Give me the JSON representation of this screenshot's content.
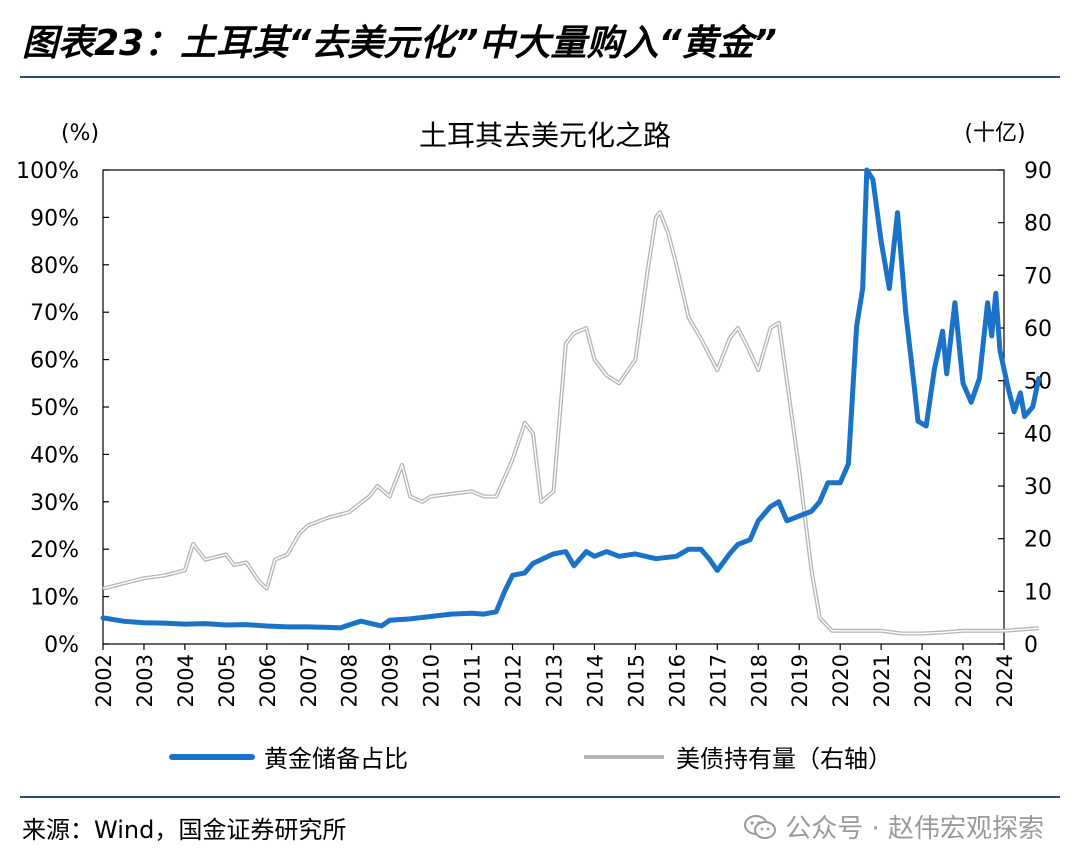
{
  "header": {
    "title": "图表23：土耳其“去美元化”中大量购入“黄金”"
  },
  "footer": {
    "source": "来源：Wind，国金证券研究所",
    "watermark": "公众号 · 赵伟宏观探索"
  },
  "colors": {
    "accent": "#1f4e79",
    "gold_series": "#1a73c8",
    "treasury_series": "#b4b4b4"
  },
  "chart_data": {
    "type": "line",
    "title": "土耳其去美元化之路",
    "y_left_unit": "(%)",
    "y_right_unit": "(十亿)",
    "ylim_left": [
      0,
      100
    ],
    "ylim_right": [
      0,
      90
    ],
    "y_left_ticks": [
      "0%",
      "10%",
      "20%",
      "30%",
      "40%",
      "50%",
      "60%",
      "70%",
      "80%",
      "90%",
      "100%"
    ],
    "y_right_ticks": [
      "0",
      "10",
      "20",
      "30",
      "40",
      "50",
      "60",
      "70",
      "80",
      "90"
    ],
    "x_ticks": [
      "2002",
      "2003",
      "2004",
      "2005",
      "2006",
      "2007",
      "2008",
      "2009",
      "2010",
      "2011",
      "2012",
      "2013",
      "2014",
      "2015",
      "2016",
      "2017",
      "2018",
      "2019",
      "2020",
      "2021",
      "2022",
      "2023",
      "2024"
    ],
    "xlim": [
      2002,
      2024
    ],
    "legend_placement": "bottom",
    "series": [
      {
        "name": "黄金储备占比",
        "axis": "left",
        "points": [
          [
            2002.0,
            5.5
          ],
          [
            2002.5,
            4.8
          ],
          [
            2003.0,
            4.5
          ],
          [
            2003.5,
            4.4
          ],
          [
            2004.0,
            4.2
          ],
          [
            2004.5,
            4.3
          ],
          [
            2005.0,
            4.0
          ],
          [
            2005.5,
            4.1
          ],
          [
            2006.0,
            3.8
          ],
          [
            2006.5,
            3.6
          ],
          [
            2007.0,
            3.6
          ],
          [
            2007.5,
            3.5
          ],
          [
            2007.8,
            3.4
          ],
          [
            2008.0,
            4.0
          ],
          [
            2008.3,
            4.8
          ],
          [
            2008.6,
            4.2
          ],
          [
            2008.8,
            3.8
          ],
          [
            2009.0,
            5.0
          ],
          [
            2009.5,
            5.3
          ],
          [
            2010.0,
            5.8
          ],
          [
            2010.5,
            6.3
          ],
          [
            2011.0,
            6.5
          ],
          [
            2011.3,
            6.3
          ],
          [
            2011.6,
            6.8
          ],
          [
            2011.8,
            11.0
          ],
          [
            2012.0,
            14.5
          ],
          [
            2012.3,
            15.0
          ],
          [
            2012.5,
            17.0
          ],
          [
            2013.0,
            19.0
          ],
          [
            2013.3,
            19.5
          ],
          [
            2013.5,
            16.5
          ],
          [
            2013.8,
            19.5
          ],
          [
            2014.0,
            18.5
          ],
          [
            2014.3,
            19.5
          ],
          [
            2014.6,
            18.5
          ],
          [
            2015.0,
            19.0
          ],
          [
            2015.5,
            18.0
          ],
          [
            2016.0,
            18.5
          ],
          [
            2016.3,
            20.0
          ],
          [
            2016.6,
            20.0
          ],
          [
            2016.8,
            18.0
          ],
          [
            2017.0,
            15.5
          ],
          [
            2017.3,
            19.0
          ],
          [
            2017.5,
            21.0
          ],
          [
            2017.8,
            22.0
          ],
          [
            2018.0,
            26.0
          ],
          [
            2018.3,
            29.0
          ],
          [
            2018.5,
            30.0
          ],
          [
            2018.7,
            26.0
          ],
          [
            2019.0,
            27.0
          ],
          [
            2019.3,
            28.0
          ],
          [
            2019.5,
            30.0
          ],
          [
            2019.7,
            34.0
          ],
          [
            2020.0,
            34.0
          ],
          [
            2020.2,
            38.0
          ],
          [
            2020.4,
            67.0
          ],
          [
            2020.55,
            75.0
          ],
          [
            2020.65,
            100.0
          ],
          [
            2020.8,
            98.0
          ],
          [
            2021.0,
            85.0
          ],
          [
            2021.2,
            75.0
          ],
          [
            2021.4,
            91.0
          ],
          [
            2021.6,
            70.0
          ],
          [
            2021.8,
            55.0
          ],
          [
            2021.9,
            47.0
          ],
          [
            2022.1,
            46.0
          ],
          [
            2022.3,
            58.0
          ],
          [
            2022.5,
            66.0
          ],
          [
            2022.6,
            57.0
          ],
          [
            2022.8,
            72.0
          ],
          [
            2023.0,
            55.0
          ],
          [
            2023.2,
            51.0
          ],
          [
            2023.4,
            56.0
          ],
          [
            2023.6,
            72.0
          ],
          [
            2023.7,
            65.0
          ],
          [
            2023.8,
            74.0
          ],
          [
            2023.9,
            62.0
          ],
          [
            2024.1,
            54.0
          ],
          [
            2024.25,
            49.0
          ],
          [
            2024.4,
            53.0
          ],
          [
            2024.5,
            48.0
          ],
          [
            2024.7,
            50.0
          ],
          [
            2024.85,
            56.0
          ]
        ]
      },
      {
        "name": "美债持有量（右轴）",
        "axis": "right",
        "points": [
          [
            2002.0,
            10.5
          ],
          [
            2002.5,
            11.5
          ],
          [
            2003.0,
            12.5
          ],
          [
            2003.5,
            13.0
          ],
          [
            2004.0,
            14.0
          ],
          [
            2004.2,
            19.0
          ],
          [
            2004.5,
            16.0
          ],
          [
            2005.0,
            17.0
          ],
          [
            2005.2,
            15.0
          ],
          [
            2005.5,
            15.5
          ],
          [
            2005.8,
            12.0
          ],
          [
            2006.0,
            10.5
          ],
          [
            2006.2,
            16.0
          ],
          [
            2006.5,
            17.0
          ],
          [
            2006.8,
            21.0
          ],
          [
            2007.0,
            22.5
          ],
          [
            2007.5,
            24.0
          ],
          [
            2008.0,
            25.0
          ],
          [
            2008.5,
            28.0
          ],
          [
            2008.7,
            30.0
          ],
          [
            2009.0,
            28.0
          ],
          [
            2009.3,
            34.0
          ],
          [
            2009.5,
            28.0
          ],
          [
            2009.8,
            27.0
          ],
          [
            2010.0,
            28.0
          ],
          [
            2010.5,
            28.5
          ],
          [
            2011.0,
            29.0
          ],
          [
            2011.3,
            28.0
          ],
          [
            2011.6,
            28.0
          ],
          [
            2012.0,
            35.0
          ],
          [
            2012.3,
            42.0
          ],
          [
            2012.5,
            40.0
          ],
          [
            2012.7,
            27.0
          ],
          [
            2013.0,
            29.0
          ],
          [
            2013.3,
            57.0
          ],
          [
            2013.5,
            59.0
          ],
          [
            2013.8,
            60.0
          ],
          [
            2014.0,
            54.0
          ],
          [
            2014.3,
            51.0
          ],
          [
            2014.6,
            49.5
          ],
          [
            2015.0,
            54.0
          ],
          [
            2015.3,
            71.0
          ],
          [
            2015.5,
            81.0
          ],
          [
            2015.6,
            82.0
          ],
          [
            2015.8,
            78.0
          ],
          [
            2016.0,
            72.0
          ],
          [
            2016.3,
            62.0
          ],
          [
            2016.6,
            58.0
          ],
          [
            2016.8,
            55.0
          ],
          [
            2017.0,
            52.0
          ],
          [
            2017.3,
            58.0
          ],
          [
            2017.5,
            60.0
          ],
          [
            2017.7,
            57.0
          ],
          [
            2018.0,
            52.0
          ],
          [
            2018.3,
            60.0
          ],
          [
            2018.5,
            61.0
          ],
          [
            2018.7,
            50.0
          ],
          [
            2019.0,
            33.0
          ],
          [
            2019.3,
            14.0
          ],
          [
            2019.5,
            5.0
          ],
          [
            2019.8,
            2.5
          ],
          [
            2020.0,
            2.5
          ],
          [
            2020.5,
            2.5
          ],
          [
            2021.0,
            2.5
          ],
          [
            2021.5,
            2.0
          ],
          [
            2022.0,
            2.0
          ],
          [
            2022.5,
            2.2
          ],
          [
            2023.0,
            2.5
          ],
          [
            2023.5,
            2.5
          ],
          [
            2024.0,
            2.5
          ],
          [
            2024.5,
            2.8
          ],
          [
            2024.85,
            3.0
          ]
        ]
      }
    ]
  }
}
